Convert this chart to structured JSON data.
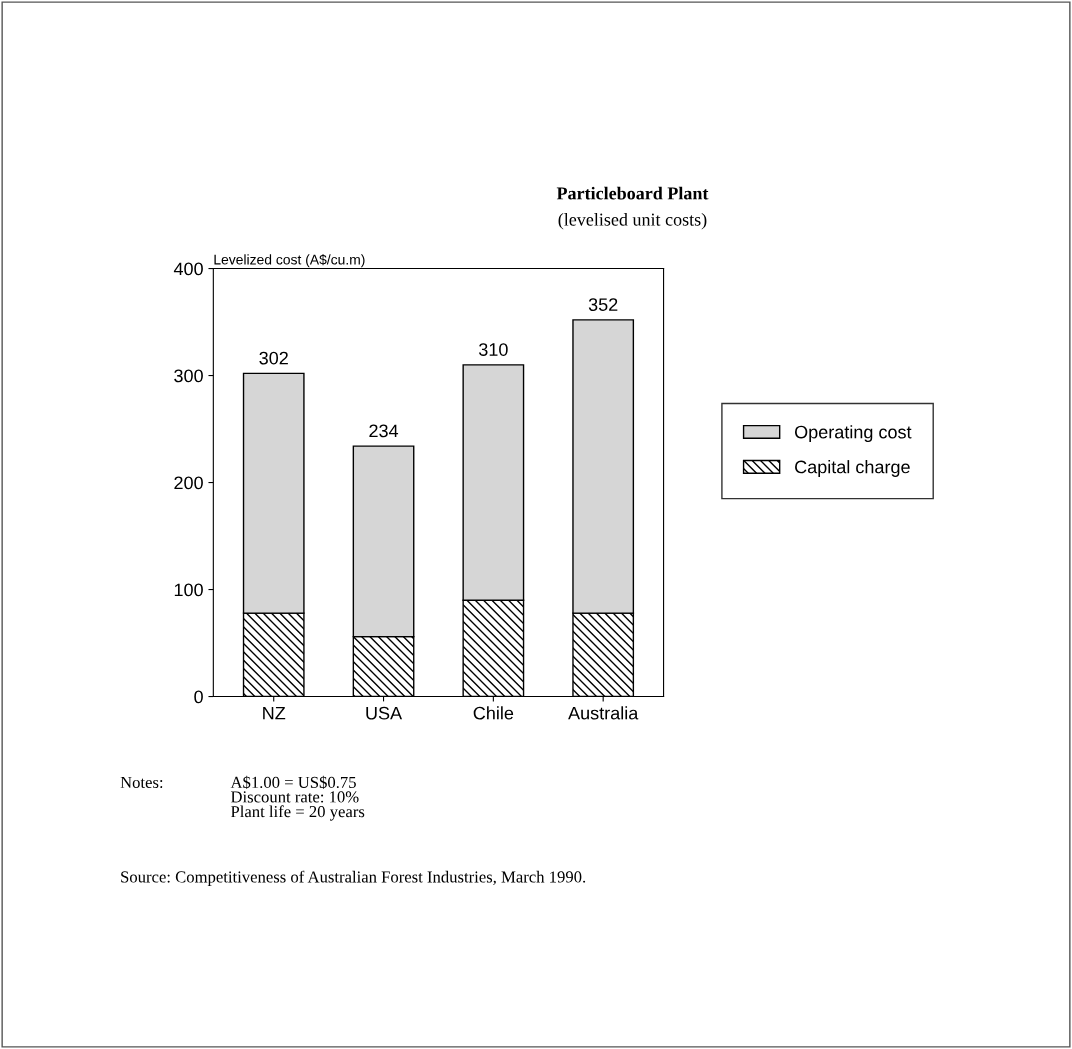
{
  "chart_data": {
    "type": "bar",
    "title": "Particleboard Plant",
    "subtitle": "(levelised unit costs)",
    "ylabel": "Levelized cost (A$/cu.m)",
    "categories": [
      "NZ",
      "USA",
      "Chile",
      "Australia"
    ],
    "stacked": true,
    "series": [
      {
        "name": "Capital charge",
        "color": "#000000",
        "values": [
          78,
          56,
          90,
          78
        ]
      },
      {
        "name": "Operating cost",
        "color": "#d6d6d6",
        "values": [
          224,
          178,
          220,
          274
        ]
      }
    ],
    "totals": [
      "302",
      "234",
      "310",
      "352"
    ],
    "ylim": [
      0,
      400
    ],
    "yticks": [
      0,
      100,
      200,
      300,
      400
    ],
    "grid": false,
    "legend": "right",
    "annotations": [
      "Notes:",
      "A$1.00 = US$0.75\nDiscount rate: 10%\nPlant life = 20 years",
      "Source: Competitiveness of Australian Forest Industries, March 1990."
    ]
  }
}
